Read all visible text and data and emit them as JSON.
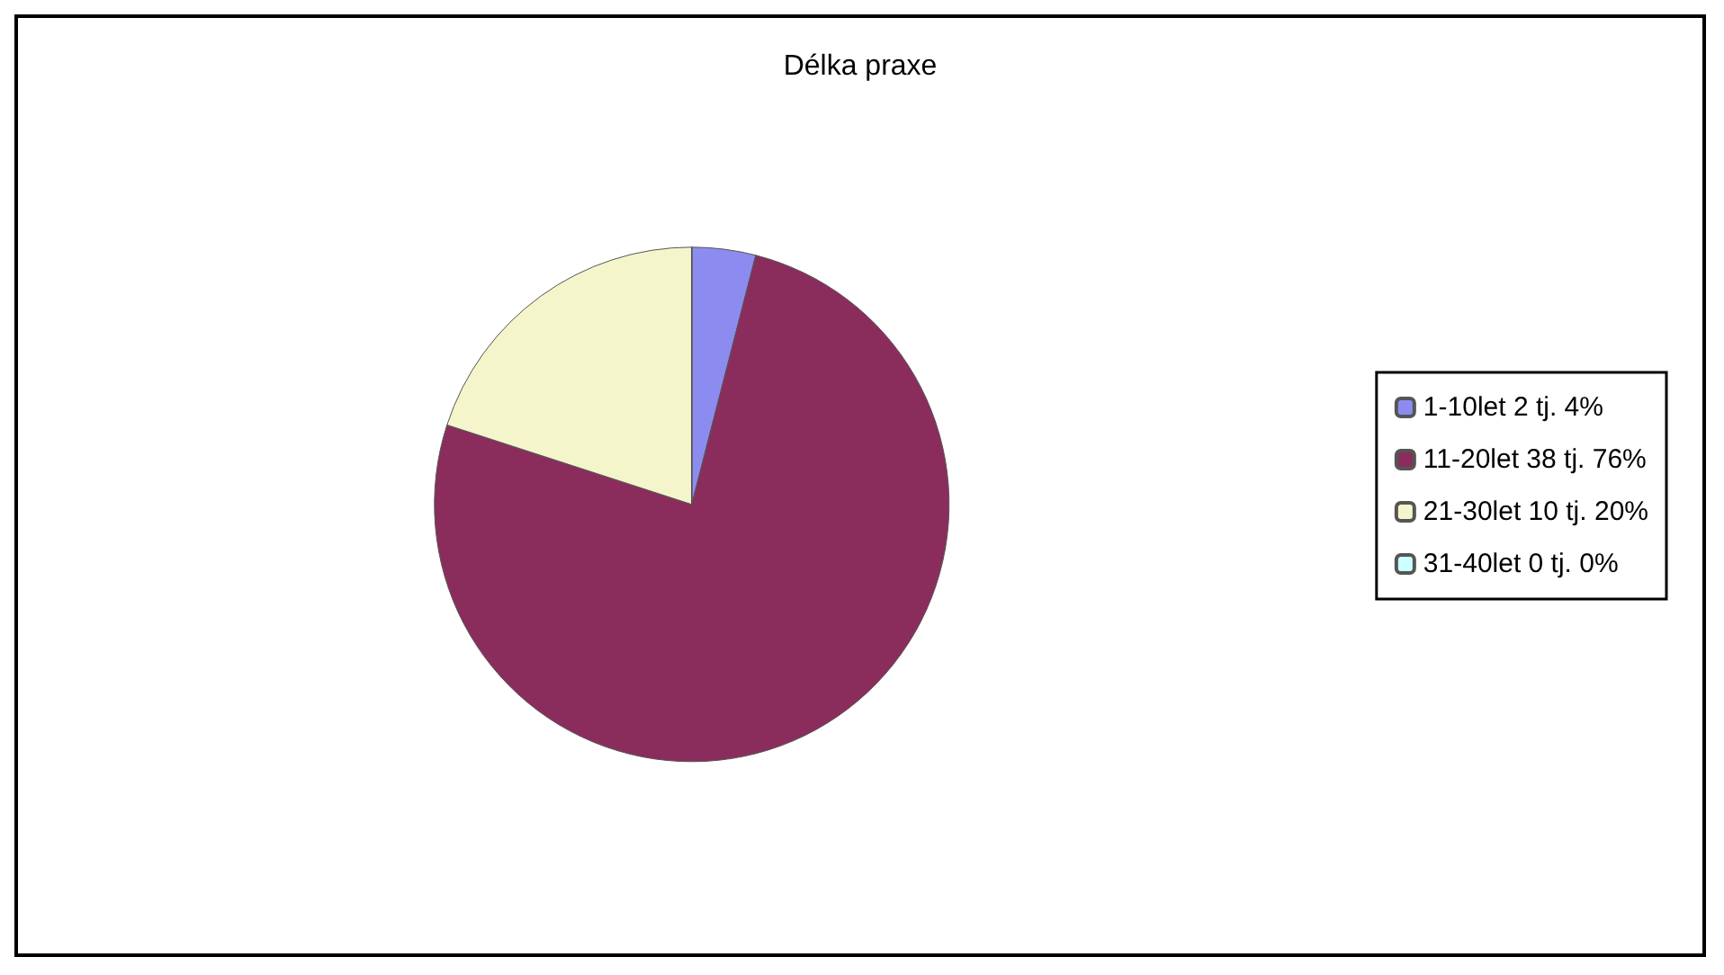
{
  "chart_data": {
    "type": "pie",
    "title": "Délka praxe",
    "categories": [
      "1-10let 2 tj. 4%",
      "11-20let 38 tj. 76%",
      "21-30let 10 tj. 20%",
      "31-40let 0 tj. 0%"
    ],
    "values": [
      4,
      76,
      20,
      0
    ],
    "colors": [
      "#8c8cf0",
      "#8b2d5c",
      "#f5f5cc",
      "#ccffff"
    ],
    "legend": "right"
  }
}
